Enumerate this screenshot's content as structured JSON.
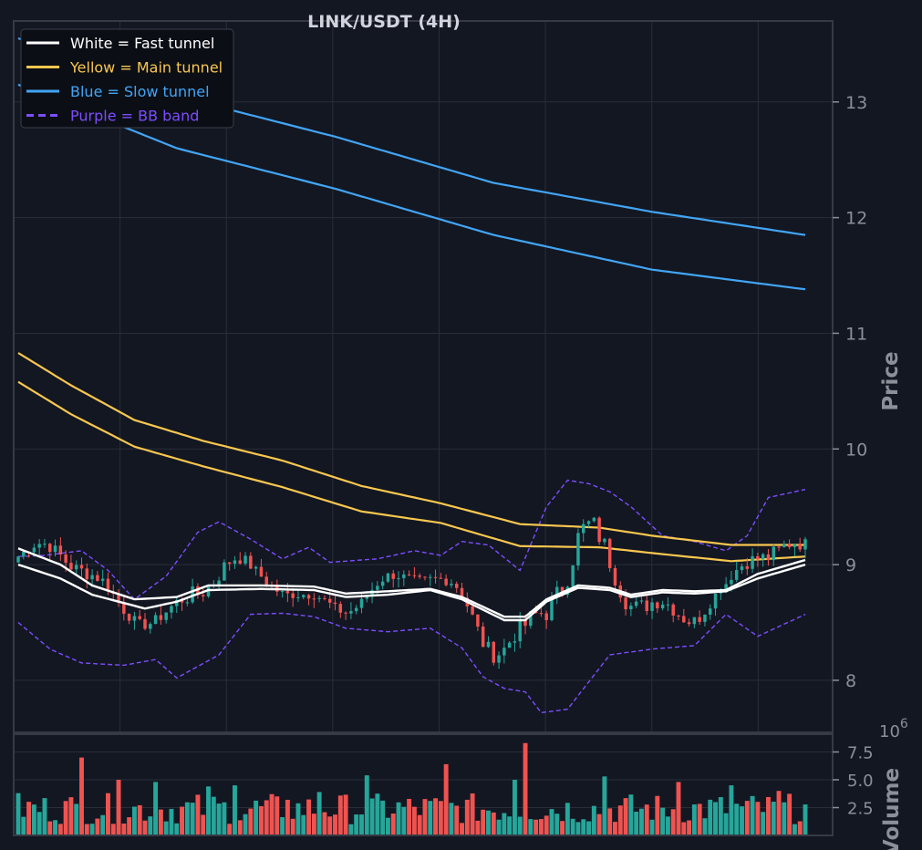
{
  "chart_data": [
    {
      "type": "line",
      "title": "LINK/USDT (4H)",
      "ylabel": "Price",
      "ylim": [
        7.55,
        13.7
      ],
      "yticks": [
        8,
        9,
        10,
        11,
        12,
        13
      ],
      "x_count": 150,
      "legend_position": "top-left",
      "grid": true,
      "legend": [
        {
          "label": "White = Fast tunnel",
          "color": "#ffffff",
          "dash": false
        },
        {
          "label": "Yellow = Main tunnel",
          "color": "#f9c74f",
          "dash": false
        },
        {
          "label": "Blue = Slow tunnel",
          "color": "#42a5f5",
          "dash": false
        },
        {
          "label": "Purple = BB band",
          "color": "#7c4dff",
          "dash": true
        }
      ],
      "series": [
        {
          "role": "slow-upper",
          "color": "#42a5f5",
          "points": [
            [
              0,
              13.55
            ],
            [
              30,
              13.05
            ],
            [
              60,
              12.7
            ],
            [
              90,
              12.3
            ],
            [
              120,
              12.05
            ],
            [
              149,
              11.85
            ]
          ]
        },
        {
          "role": "slow-lower",
          "color": "#42a5f5",
          "points": [
            [
              0,
              13.15
            ],
            [
              30,
              12.6
            ],
            [
              60,
              12.25
            ],
            [
              90,
              11.85
            ],
            [
              120,
              11.55
            ],
            [
              149,
              11.38
            ]
          ]
        },
        {
          "role": "main-upper",
          "color": "#f9c74f",
          "points": [
            [
              0,
              10.83
            ],
            [
              10,
              10.55
            ],
            [
              22,
              10.25
            ],
            [
              35,
              10.07
            ],
            [
              50,
              9.9
            ],
            [
              65,
              9.68
            ],
            [
              80,
              9.53
            ],
            [
              95,
              9.35
            ],
            [
              110,
              9.32
            ],
            [
              120,
              9.25
            ],
            [
              135,
              9.17
            ],
            [
              149,
              9.17
            ]
          ]
        },
        {
          "role": "main-lower",
          "color": "#f9c74f",
          "points": [
            [
              0,
              10.58
            ],
            [
              10,
              10.3
            ],
            [
              22,
              10.02
            ],
            [
              35,
              9.85
            ],
            [
              50,
              9.67
            ],
            [
              65,
              9.46
            ],
            [
              80,
              9.36
            ],
            [
              95,
              9.16
            ],
            [
              110,
              9.15
            ],
            [
              120,
              9.1
            ],
            [
              135,
              9.03
            ],
            [
              149,
              9.07
            ]
          ]
        },
        {
          "role": "fast-upper",
          "color": "#ffffff",
          "points": [
            [
              0,
              9.14
            ],
            [
              8,
              9.0
            ],
            [
              14,
              8.82
            ],
            [
              22,
              8.7
            ],
            [
              30,
              8.72
            ],
            [
              36,
              8.82
            ],
            [
              46,
              8.82
            ],
            [
              56,
              8.81
            ],
            [
              62,
              8.75
            ],
            [
              70,
              8.77
            ],
            [
              78,
              8.79
            ],
            [
              84,
              8.72
            ],
            [
              92,
              8.55
            ],
            [
              96,
              8.55
            ],
            [
              100,
              8.7
            ],
            [
              106,
              8.82
            ],
            [
              112,
              8.8
            ],
            [
              116,
              8.74
            ],
            [
              122,
              8.78
            ],
            [
              128,
              8.77
            ],
            [
              134,
              8.78
            ],
            [
              140,
              8.92
            ],
            [
              149,
              9.04
            ]
          ]
        },
        {
          "role": "fast-lower",
          "color": "#ffffff",
          "points": [
            [
              0,
              9.0
            ],
            [
              8,
              8.88
            ],
            [
              14,
              8.74
            ],
            [
              24,
              8.62
            ],
            [
              30,
              8.68
            ],
            [
              36,
              8.78
            ],
            [
              46,
              8.79
            ],
            [
              56,
              8.78
            ],
            [
              62,
              8.72
            ],
            [
              70,
              8.74
            ],
            [
              78,
              8.78
            ],
            [
              84,
              8.7
            ],
            [
              92,
              8.52
            ],
            [
              96,
              8.52
            ],
            [
              100,
              8.68
            ],
            [
              106,
              8.8
            ],
            [
              112,
              8.78
            ],
            [
              116,
              8.72
            ],
            [
              122,
              8.76
            ],
            [
              128,
              8.75
            ],
            [
              134,
              8.77
            ],
            [
              140,
              8.88
            ],
            [
              149,
              9.0
            ]
          ]
        },
        {
          "role": "bb-upper",
          "color": "#7c4dff",
          "dash": true,
          "points": [
            [
              0,
              9.07
            ],
            [
              5,
              9.08
            ],
            [
              12,
              9.12
            ],
            [
              17,
              8.95
            ],
            [
              22,
              8.7
            ],
            [
              28,
              8.9
            ],
            [
              34,
              9.28
            ],
            [
              38,
              9.37
            ],
            [
              44,
              9.22
            ],
            [
              50,
              9.05
            ],
            [
              55,
              9.15
            ],
            [
              59,
              9.02
            ],
            [
              68,
              9.05
            ],
            [
              75,
              9.12
            ],
            [
              80,
              9.08
            ],
            [
              84,
              9.2
            ],
            [
              89,
              9.17
            ],
            [
              95,
              8.95
            ],
            [
              100,
              9.5
            ],
            [
              104,
              9.73
            ],
            [
              108,
              9.7
            ],
            [
              112,
              9.63
            ],
            [
              116,
              9.5
            ],
            [
              122,
              9.25
            ],
            [
              128,
              9.2
            ],
            [
              134,
              9.12
            ],
            [
              138,
              9.25
            ],
            [
              142,
              9.58
            ],
            [
              149,
              9.65
            ]
          ]
        },
        {
          "role": "bb-lower",
          "color": "#7c4dff",
          "dash": true,
          "points": [
            [
              0,
              8.5
            ],
            [
              6,
              8.27
            ],
            [
              12,
              8.15
            ],
            [
              20,
              8.13
            ],
            [
              26,
              8.18
            ],
            [
              30,
              8.02
            ],
            [
              38,
              8.22
            ],
            [
              44,
              8.57
            ],
            [
              50,
              8.58
            ],
            [
              56,
              8.55
            ],
            [
              62,
              8.45
            ],
            [
              70,
              8.42
            ],
            [
              78,
              8.45
            ],
            [
              84,
              8.28
            ],
            [
              88,
              8.03
            ],
            [
              92,
              7.93
            ],
            [
              96,
              7.9
            ],
            [
              99,
              7.72
            ],
            [
              104,
              7.75
            ],
            [
              112,
              8.22
            ],
            [
              120,
              8.27
            ],
            [
              128,
              8.3
            ],
            [
              134,
              8.57
            ],
            [
              140,
              8.38
            ],
            [
              149,
              8.57
            ]
          ]
        }
      ]
    },
    {
      "type": "bar",
      "ylabel": "Volume",
      "y_multiplier": "10^6",
      "ylim": [
        0,
        9.1
      ],
      "yticks": [
        2.5,
        5.0,
        7.5
      ],
      "ytick_labels": [
        "2.5",
        "5.0",
        "7.5"
      ],
      "up_color": "#26a69a",
      "down_color": "#ef5350",
      "bars": [
        {
          "x": 0,
          "v": 3.8
        },
        {
          "x": 12,
          "v": 7.0
        },
        {
          "x": 19,
          "v": 5.0
        },
        {
          "x": 26,
          "v": 4.8
        },
        {
          "x": 36,
          "v": 4.4
        },
        {
          "x": 41,
          "v": 4.5
        },
        {
          "x": 51,
          "v": 3.2
        },
        {
          "x": 57,
          "v": 3.9
        },
        {
          "x": 66,
          "v": 5.4
        },
        {
          "x": 81,
          "v": 6.4
        },
        {
          "x": 94,
          "v": 5.0
        },
        {
          "x": 96,
          "v": 8.3
        },
        {
          "x": 111,
          "v": 5.3
        },
        {
          "x": 125,
          "v": 4.8
        },
        {
          "x": 135,
          "v": 4.5
        },
        {
          "x": 144,
          "v": 4.0
        }
      ]
    }
  ]
}
